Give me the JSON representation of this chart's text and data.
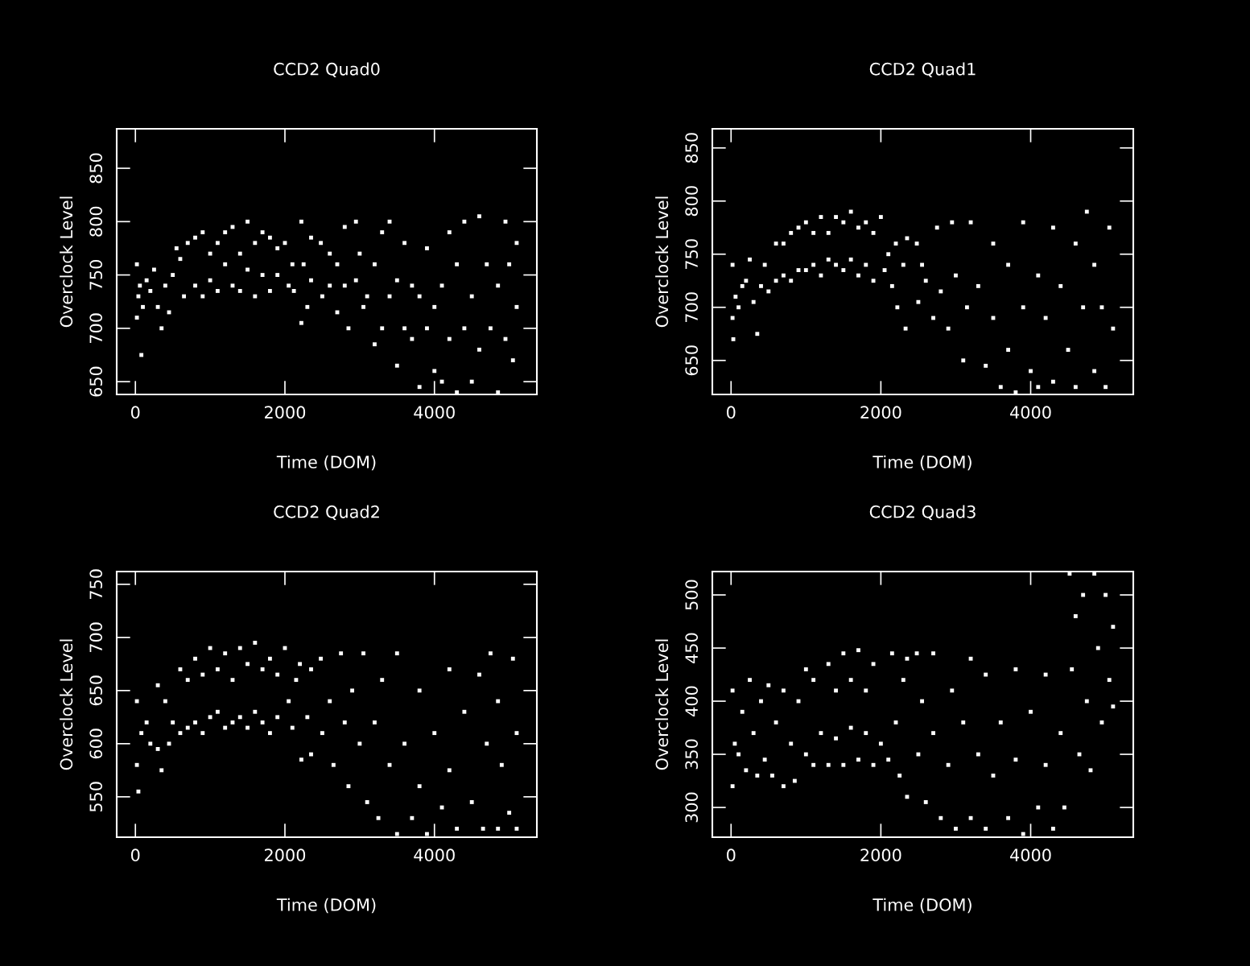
{
  "chart_data": [
    {
      "type": "scatter",
      "title": "CCD2 Quad0",
      "xlabel": "Time (DOM)",
      "ylabel": "Overclock Level",
      "marker": "square",
      "xlim": [
        -250,
        5370
      ],
      "ylim": [
        638,
        887
      ],
      "xticks": [
        0,
        2000,
        4000
      ],
      "yticks": [
        650,
        700,
        750,
        800,
        850
      ],
      "series": [
        {
          "color": "#ffffff",
          "x": [
            20,
            20,
            40,
            60,
            80,
            100,
            150,
            200,
            250,
            300,
            350,
            400,
            450,
            500,
            550,
            600,
            650,
            700,
            800,
            800,
            900,
            900,
            1000,
            1000,
            1100,
            1100,
            1200,
            1200,
            1300,
            1300,
            1400,
            1400,
            1500,
            1500,
            1600,
            1600,
            1700,
            1700,
            1800,
            1800,
            1900,
            1900,
            2000,
            2050,
            2100,
            2120,
            2220,
            2220,
            2250,
            2300,
            2350,
            2350,
            2480,
            2500,
            2600,
            2600,
            2700,
            2700,
            2800,
            2800,
            2850,
            2950,
            2950,
            3000,
            3050,
            3100,
            3200,
            3200,
            3300,
            3300,
            3400,
            3400,
            3500,
            3500,
            3600,
            3600,
            3700,
            3700,
            3800,
            3800,
            3900,
            3900,
            4000,
            4000,
            4100,
            4100,
            4200,
            4200,
            4300,
            4300,
            4400,
            4400,
            4500,
            4500,
            4600,
            4600,
            4700,
            4750,
            4850,
            4850,
            4950,
            4950,
            5000,
            5050,
            5100,
            5100
          ],
          "values": [
            760,
            710,
            730,
            740,
            675,
            720,
            745,
            735,
            755,
            720,
            700,
            740,
            715,
            750,
            775,
            765,
            730,
            780,
            785,
            740,
            790,
            730,
            770,
            745,
            780,
            735,
            790,
            760,
            795,
            740,
            770,
            735,
            800,
            755,
            780,
            730,
            790,
            750,
            785,
            735,
            775,
            750,
            780,
            740,
            760,
            735,
            800,
            705,
            760,
            720,
            785,
            745,
            780,
            730,
            770,
            740,
            760,
            715,
            795,
            740,
            700,
            800,
            745,
            770,
            720,
            730,
            760,
            685,
            790,
            700,
            800,
            730,
            665,
            745,
            780,
            700,
            690,
            740,
            645,
            730,
            775,
            700,
            660,
            720,
            650,
            740,
            790,
            690,
            640,
            760,
            800,
            700,
            650,
            730,
            805,
            680,
            760,
            700,
            640,
            740,
            800,
            690,
            760,
            670,
            780,
            720
          ]
        }
      ]
    },
    {
      "type": "scatter",
      "title": "CCD2 Quad1",
      "xlabel": "Time (DOM)",
      "ylabel": "Overclock Level",
      "marker": "square",
      "xlim": [
        -250,
        5370
      ],
      "ylim": [
        618,
        868
      ],
      "xticks": [
        0,
        2000,
        4000
      ],
      "yticks": [
        650,
        700,
        750,
        800,
        850
      ],
      "series": [
        {
          "color": "#ffffff",
          "x": [
            20,
            20,
            30,
            60,
            100,
            150,
            200,
            250,
            300,
            350,
            400,
            450,
            500,
            600,
            600,
            700,
            700,
            800,
            800,
            900,
            900,
            1000,
            1000,
            1100,
            1100,
            1200,
            1200,
            1300,
            1300,
            1400,
            1400,
            1500,
            1500,
            1600,
            1600,
            1700,
            1700,
            1800,
            1800,
            1900,
            1900,
            2000,
            2050,
            2100,
            2150,
            2200,
            2220,
            2300,
            2330,
            2350,
            2480,
            2500,
            2550,
            2600,
            2700,
            2750,
            2800,
            2900,
            2950,
            3000,
            3100,
            3150,
            3200,
            3300,
            3400,
            3500,
            3500,
            3600,
            3700,
            3700,
            3800,
            3900,
            3900,
            4000,
            4100,
            4100,
            4200,
            4300,
            4300,
            4400,
            4500,
            4600,
            4600,
            4700,
            4750,
            4850,
            4850,
            4950,
            5000,
            5050,
            5100
          ],
          "values": [
            740,
            690,
            670,
            710,
            700,
            720,
            725,
            745,
            705,
            675,
            720,
            740,
            715,
            760,
            725,
            760,
            730,
            770,
            725,
            775,
            735,
            780,
            735,
            770,
            740,
            785,
            730,
            770,
            745,
            785,
            740,
            780,
            735,
            790,
            745,
            775,
            730,
            780,
            740,
            770,
            725,
            785,
            735,
            750,
            720,
            760,
            700,
            740,
            680,
            765,
            760,
            705,
            740,
            725,
            690,
            775,
            715,
            680,
            780,
            730,
            650,
            700,
            780,
            720,
            645,
            760,
            690,
            625,
            740,
            660,
            620,
            780,
            700,
            640,
            730,
            625,
            690,
            775,
            630,
            720,
            660,
            760,
            625,
            700,
            790,
            740,
            640,
            700,
            625,
            775,
            680
          ]
        }
      ]
    },
    {
      "type": "scatter",
      "title": "CCD2 Quad2",
      "xlabel": "Time (DOM)",
      "ylabel": "Overclock Level",
      "marker": "square",
      "xlim": [
        -250,
        5370
      ],
      "ylim": [
        512,
        762
      ],
      "xticks": [
        0,
        2000,
        4000
      ],
      "yticks": [
        550,
        600,
        650,
        700,
        750
      ],
      "series": [
        {
          "color": "#ffffff",
          "x": [
            20,
            20,
            40,
            80,
            150,
            200,
            300,
            300,
            350,
            400,
            450,
            500,
            600,
            600,
            700,
            700,
            800,
            800,
            900,
            900,
            1000,
            1000,
            1100,
            1100,
            1200,
            1200,
            1300,
            1300,
            1400,
            1400,
            1500,
            1500,
            1600,
            1600,
            1700,
            1700,
            1800,
            1800,
            1900,
            1900,
            2000,
            2050,
            2100,
            2150,
            2200,
            2220,
            2300,
            2350,
            2350,
            2480,
            2500,
            2600,
            2650,
            2750,
            2800,
            2850,
            2900,
            3000,
            3050,
            3100,
            3200,
            3250,
            3300,
            3400,
            3500,
            3500,
            3600,
            3700,
            3800,
            3800,
            3900,
            4000,
            4100,
            4200,
            4200,
            4300,
            4400,
            4500,
            4600,
            4650,
            4700,
            4750,
            4850,
            4850,
            4900,
            5000,
            5050,
            5100,
            5100
          ],
          "values": [
            640,
            580,
            555,
            610,
            620,
            600,
            655,
            595,
            575,
            640,
            600,
            620,
            670,
            610,
            660,
            615,
            680,
            620,
            665,
            610,
            690,
            625,
            670,
            630,
            685,
            615,
            660,
            620,
            690,
            625,
            675,
            615,
            695,
            630,
            670,
            620,
            680,
            610,
            665,
            625,
            690,
            640,
            615,
            660,
            675,
            585,
            625,
            670,
            590,
            680,
            610,
            640,
            580,
            685,
            620,
            560,
            650,
            600,
            685,
            545,
            620,
            530,
            660,
            580,
            515,
            685,
            600,
            530,
            650,
            560,
            515,
            610,
            540,
            670,
            575,
            520,
            630,
            545,
            665,
            520,
            600,
            685,
            520,
            640,
            580,
            535,
            680,
            610,
            520
          ]
        }
      ]
    },
    {
      "type": "scatter",
      "title": "CCD2 Quad3",
      "xlabel": "Time (DOM)",
      "ylabel": "Overclock Level",
      "marker": "square",
      "xlim": [
        -250,
        5370
      ],
      "ylim": [
        272,
        522
      ],
      "xticks": [
        0,
        2000,
        4000
      ],
      "yticks": [
        300,
        350,
        400,
        450,
        500
      ],
      "series": [
        {
          "color": "#ffffff",
          "x": [
            20,
            20,
            50,
            100,
            150,
            200,
            250,
            300,
            350,
            400,
            450,
            500,
            550,
            600,
            700,
            700,
            800,
            850,
            900,
            1000,
            1000,
            1100,
            1100,
            1200,
            1300,
            1300,
            1400,
            1400,
            1500,
            1500,
            1600,
            1600,
            1700,
            1700,
            1800,
            1800,
            1900,
            1900,
            2000,
            2100,
            2150,
            2200,
            2250,
            2300,
            2350,
            2350,
            2480,
            2500,
            2550,
            2600,
            2700,
            2700,
            2800,
            2900,
            2950,
            3000,
            3100,
            3200,
            3200,
            3300,
            3400,
            3400,
            3500,
            3600,
            3700,
            3800,
            3800,
            3900,
            4000,
            4100,
            4200,
            4200,
            4300,
            4400,
            4450,
            4520,
            4550,
            4600,
            4650,
            4700,
            4750,
            4800,
            4850,
            4900,
            4950,
            5000,
            5050,
            5100,
            5100
          ],
          "values": [
            410,
            320,
            360,
            350,
            390,
            335,
            420,
            370,
            330,
            400,
            345,
            415,
            330,
            380,
            320,
            410,
            360,
            325,
            400,
            350,
            430,
            340,
            420,
            370,
            340,
            435,
            365,
            410,
            340,
            445,
            375,
            420,
            345,
            448,
            370,
            410,
            340,
            435,
            360,
            345,
            445,
            380,
            330,
            420,
            310,
            440,
            445,
            350,
            400,
            305,
            370,
            445,
            290,
            340,
            410,
            280,
            380,
            440,
            290,
            350,
            425,
            280,
            330,
            380,
            290,
            430,
            345,
            275,
            390,
            300,
            425,
            340,
            280,
            370,
            300,
            520,
            430,
            480,
            350,
            500,
            400,
            335,
            520,
            450,
            380,
            500,
            420,
            470,
            395
          ]
        }
      ]
    }
  ]
}
